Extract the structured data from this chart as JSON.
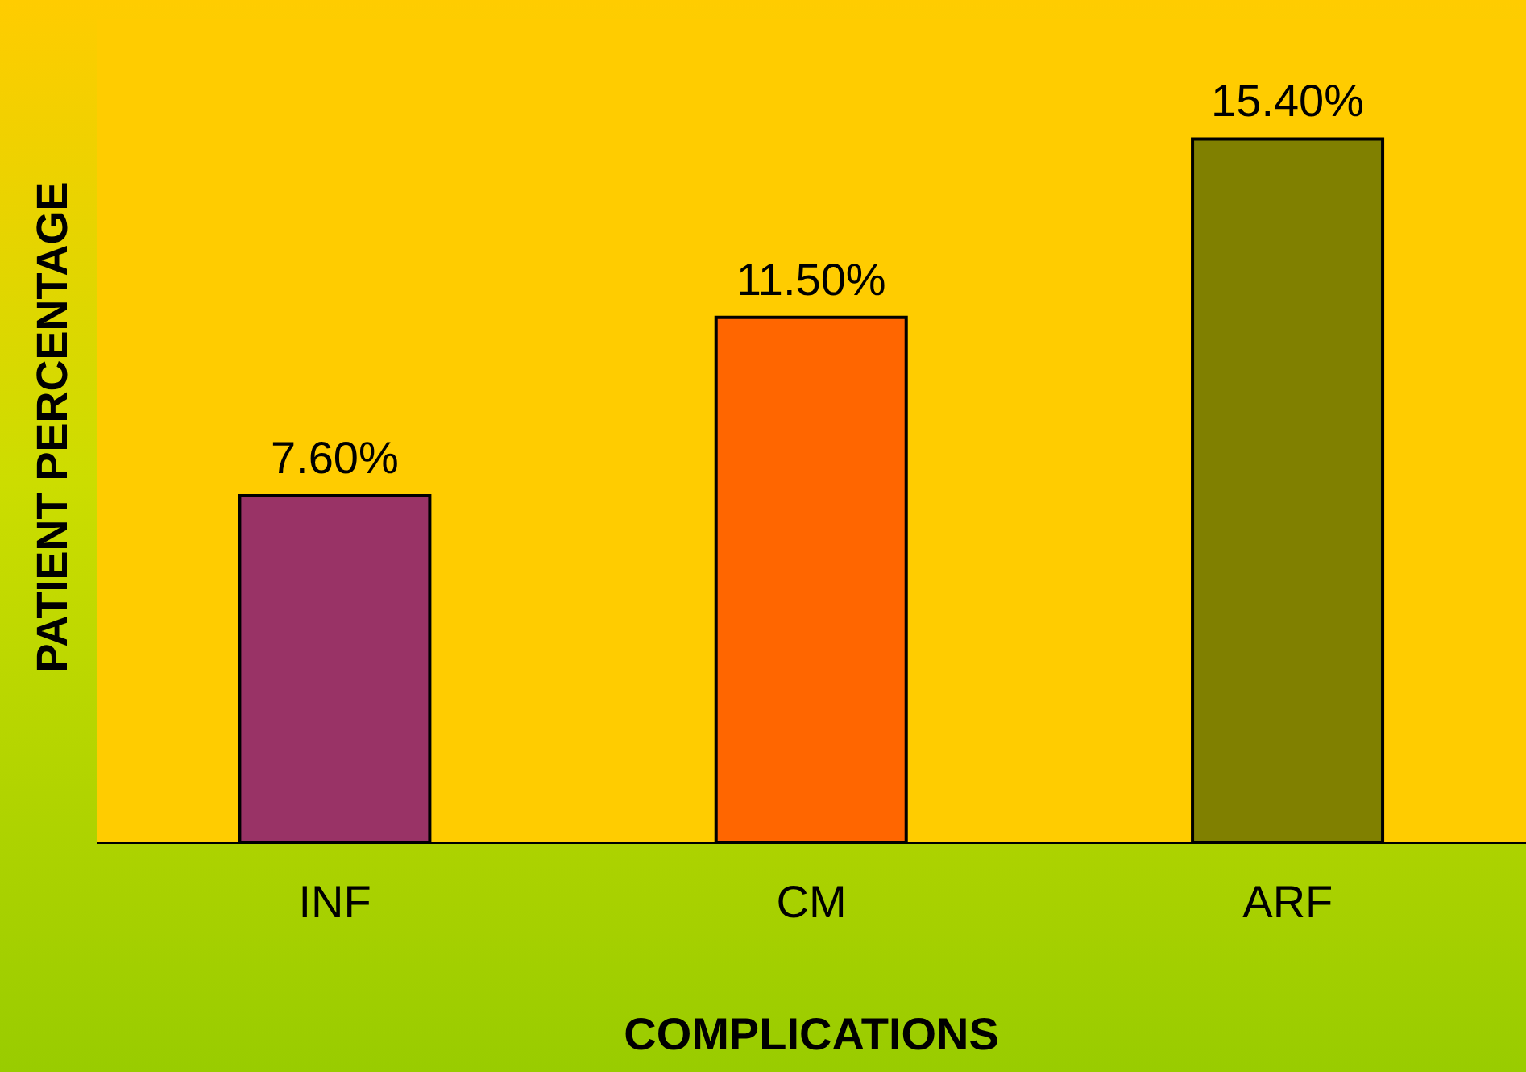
{
  "chart_data": {
    "type": "bar",
    "xlabel": "COMPLICATIONS",
    "ylabel": "PATIENT PERCENTAGE",
    "categories": [
      "INF",
      "CM",
      "ARF"
    ],
    "values": [
      7.6,
      11.5,
      15.4
    ],
    "colors": [
      "#993366",
      "#ff6600",
      "#808000"
    ],
    "data_labels": true,
    "value_labels": [
      "7.60%",
      "11.50%",
      "15.40%"
    ],
    "tick_labels": "x",
    "legend": false,
    "grid": false
  }
}
